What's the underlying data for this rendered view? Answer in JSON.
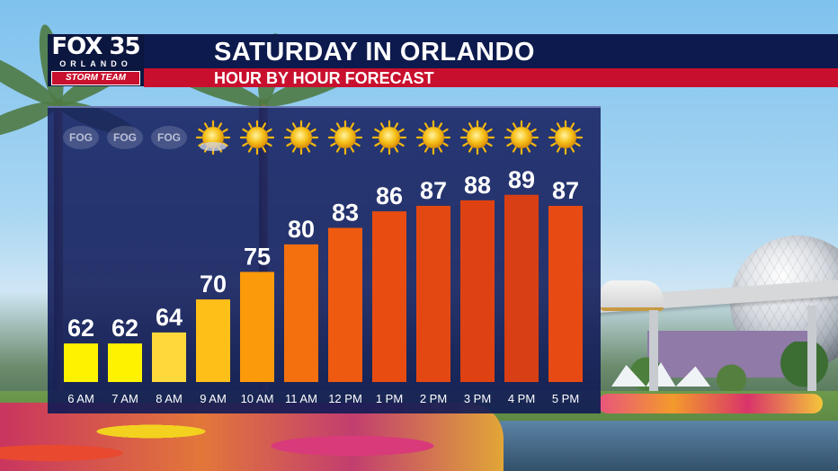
{
  "header": {
    "logo": {
      "line1": "FOX 35",
      "line2": "ORLANDO",
      "line3": "STORM TEAM"
    },
    "title": "SATURDAY IN ORLANDO",
    "subtitle": "HOUR BY HOUR FORECAST"
  },
  "colors": {
    "title_bar": "#0d1a4d",
    "subtitle_bar": "#c8102e",
    "panel": "#141e5f"
  },
  "chart_data": {
    "type": "bar",
    "title": "SATURDAY IN ORLANDO",
    "subtitle": "HOUR BY HOUR FORECAST",
    "categories": [
      "6 AM",
      "7 AM",
      "8 AM",
      "9 AM",
      "10 AM",
      "11 AM",
      "12 PM",
      "1 PM",
      "2 PM",
      "3 PM",
      "4 PM",
      "5 PM"
    ],
    "values": [
      62,
      62,
      64,
      70,
      75,
      80,
      83,
      86,
      87,
      88,
      89,
      87
    ],
    "conditions": [
      "fog",
      "fog",
      "fog",
      "partly-sunny",
      "sunny",
      "sunny",
      "sunny",
      "sunny",
      "sunny",
      "sunny",
      "sunny",
      "sunny"
    ],
    "condition_labels": [
      "FOG",
      "FOG",
      "FOG",
      "",
      "",
      "",
      "",
      "",
      "",
      "",
      "",
      ""
    ],
    "bar_colors": [
      "#fff200",
      "#fff200",
      "#ffd83a",
      "#fdbf18",
      "#fb9a0a",
      "#f4700f",
      "#ee5b10",
      "#e84c10",
      "#e44812",
      "#df4212",
      "#d93f14",
      "#e74a12"
    ],
    "ylim": [
      55,
      95
    ],
    "xlabel": "",
    "ylabel": "",
    "legend": "none",
    "grid": false
  }
}
